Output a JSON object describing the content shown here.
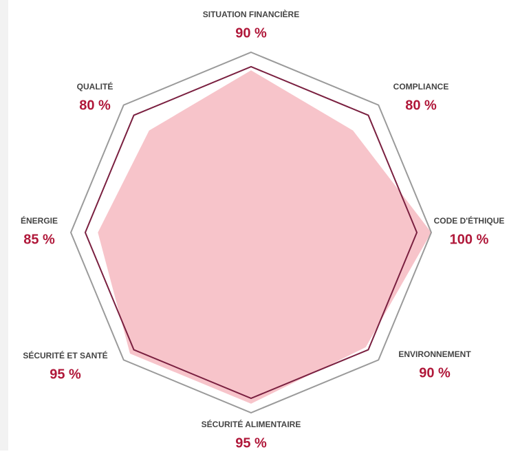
{
  "chart_data": {
    "type": "radar",
    "categories": [
      "SITUATION FINANCIÈRE",
      "COMPLIANCE",
      "CODE D'ÉTHIQUE",
      "ENVIRONNEMENT",
      "SÉCURITÉ ALIMENTAIRE",
      "SÉCURITÉ ET SANTÉ",
      "ÉNERGIE",
      "QUALITÉ"
    ],
    "values": [
      90,
      80,
      100,
      90,
      95,
      95,
      85,
      80
    ],
    "value_labels": [
      "90 %",
      "80 %",
      "100 %",
      "90 %",
      "95 %",
      "95 %",
      "85 %",
      "80 %"
    ],
    "color": "#f7c4ca",
    "rlim": [
      0,
      100
    ],
    "rticks": [
      92,
      100
    ],
    "ring_colors": [
      "#7a2040",
      "#9a9a9a"
    ]
  }
}
